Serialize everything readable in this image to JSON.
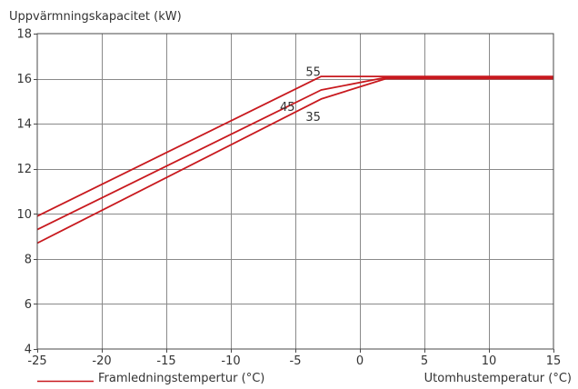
{
  "chart_data": {
    "type": "line",
    "title": "",
    "ylabel": "Uppvärmningskapacitet (kW)",
    "xlabel": "Utomhustemperatur (°C)",
    "legend_label": "Framledningstempertur (°C)",
    "legend_position": "bottom-left",
    "grid": true,
    "xlim": [
      -25,
      15
    ],
    "ylim": [
      4,
      18
    ],
    "x_ticks": [
      -25,
      -20,
      -15,
      -10,
      -5,
      0,
      5,
      10,
      15
    ],
    "y_ticks": [
      4,
      6,
      8,
      10,
      12,
      14,
      16,
      18
    ],
    "line_color": "#c8191e",
    "series": [
      {
        "name": "55",
        "points": [
          [
            -25,
            9.9
          ],
          [
            -3,
            16.1
          ],
          [
            15,
            16.1
          ]
        ]
      },
      {
        "name": "45",
        "points": [
          [
            -25,
            9.3
          ],
          [
            -3,
            15.5
          ],
          [
            2,
            16.05
          ],
          [
            15,
            16.05
          ]
        ]
      },
      {
        "name": "35",
        "points": [
          [
            -25,
            8.7
          ],
          [
            -3,
            15.1
          ],
          [
            2,
            16.0
          ],
          [
            15,
            16.0
          ]
        ]
      }
    ],
    "annotations": [
      {
        "text": "55",
        "x": -4.2,
        "y": 16.3
      },
      {
        "text": "45",
        "x": -6.2,
        "y": 14.75
      },
      {
        "text": "35",
        "x": -4.2,
        "y": 14.3
      }
    ]
  }
}
